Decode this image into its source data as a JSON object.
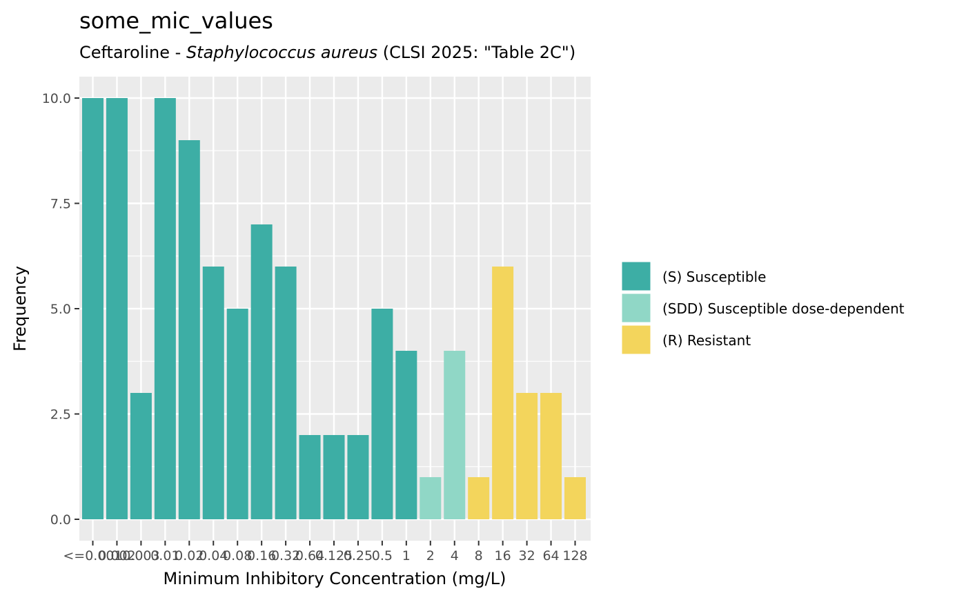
{
  "title": "some_mic_values",
  "subtitle": {
    "drug": "Ceftaroline",
    "separator": " - ",
    "organism": "Staphylococcus aureus",
    "guideline": " (CLSI 2025: \"Table 2C\")"
  },
  "legend": {
    "placement": "right",
    "items": [
      {
        "label": "(S) Susceptible",
        "color": "#3cae a3"
      },
      {
        "label": "(SDD) Susceptible dose-dependent",
        "color": "#8fd6c5"
      },
      {
        "label": "(R) Resistant",
        "color": "#f4d55c"
      }
    ]
  },
  "chart_data": {
    "type": "bar",
    "title": "some_mic_values",
    "subtitle": "Ceftaroline - Staphylococcus aureus (CLSI 2025: \"Table 2C\")",
    "xlabel": "Minimum Inhibitory Concentration (mg/L)",
    "ylabel": "Frequency",
    "ylim": [
      0,
      10
    ],
    "yticks": [
      "0.0",
      "2.5",
      "5.0",
      "7.5",
      "10.0"
    ],
    "grid": true,
    "categories": [
      "<=0.001",
      "0.002",
      "0.003",
      "0.01",
      "0.02",
      "0.04",
      "0.08",
      "0.16",
      "0.32",
      "0.64",
      "0.125",
      "0.25",
      "0.5",
      "1",
      "2",
      "4",
      "8",
      "16",
      "32",
      "64",
      "128"
    ],
    "values": [
      10,
      10,
      3,
      10,
      9,
      6,
      5,
      7,
      6,
      2,
      2,
      2,
      5,
      4,
      1,
      4,
      1,
      6,
      3,
      3,
      1
    ],
    "interpretation": [
      "S",
      "S",
      "S",
      "S",
      "S",
      "S",
      "S",
      "S",
      "S",
      "S",
      "S",
      "S",
      "S",
      "S",
      "SDD",
      "SDD",
      "R",
      "R",
      "R",
      "R",
      "R"
    ],
    "colors": {
      "S": "#3daea5",
      "SDD": "#90d7c6",
      "R": "#f3d55c"
    }
  }
}
